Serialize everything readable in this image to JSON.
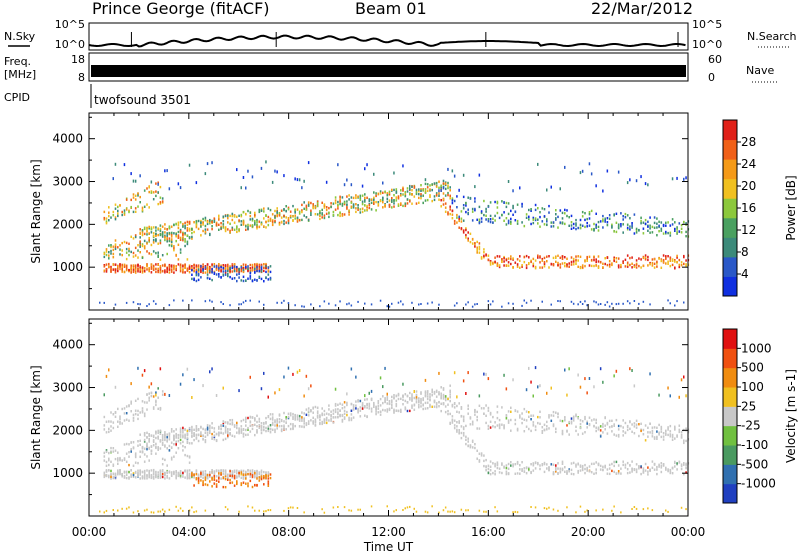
{
  "header": {
    "title": "Prince George (fitACF)",
    "beam": "Beam 01",
    "date": "22/Mar/2012"
  },
  "strip": {
    "nsky_label": "N.Sky",
    "nsearch_label": "N.Search",
    "freq_label": "Freq.",
    "freq_unit": "[MHz]",
    "nave_label": "Nave",
    "cpid_label": "CPID",
    "cpid_text": "twofsound 3501",
    "noise_ticks": [
      "10^5",
      "10^0"
    ],
    "freq_ticks": [
      "18",
      "8"
    ],
    "nave_ticks": [
      "60",
      "0"
    ]
  },
  "chart_data": [
    {
      "type": "heatmap",
      "title": "",
      "xlabel": "",
      "ylabel": "Slant Range [km]",
      "x_ticks": [
        "00:00",
        "04:00",
        "08:00",
        "12:00",
        "16:00",
        "20:00",
        "00:00"
      ],
      "x_range_hours": [
        0,
        24
      ],
      "yticks": [
        1000,
        2000,
        3000,
        4000
      ],
      "ylim": [
        0,
        4600
      ],
      "colorbar": {
        "label": "Power [dB]",
        "ticks": [
          4,
          8,
          12,
          16,
          20,
          24,
          28
        ],
        "range": [
          0,
          32
        ],
        "colors": [
          "#1030e0",
          "#2a58c8",
          "#3c8a7a",
          "#4aa060",
          "#8cc83c",
          "#f0c020",
          "#f59a18",
          "#f06018",
          "#e02018"
        ]
      }
    },
    {
      "type": "heatmap",
      "title": "",
      "xlabel": "Time UT",
      "ylabel": "Slant Range [km]",
      "x_ticks": [
        "00:00",
        "04:00",
        "08:00",
        "12:00",
        "16:00",
        "20:00",
        "00:00"
      ],
      "x_range_hours": [
        0,
        24
      ],
      "yticks": [
        1000,
        2000,
        3000,
        4000
      ],
      "ylim": [
        0,
        4600
      ],
      "colorbar": {
        "label": "Velocity [m s-1]",
        "ticks": [
          "1000",
          "500",
          "100",
          "25",
          "-25",
          "-100",
          "-500",
          "-1000"
        ],
        "colors": [
          "#2040c0",
          "#3070b0",
          "#4a9a60",
          "#70c040",
          "#c8c8c8",
          "#f0c020",
          "#f08c10",
          "#f05010",
          "#e01010"
        ]
      }
    }
  ]
}
